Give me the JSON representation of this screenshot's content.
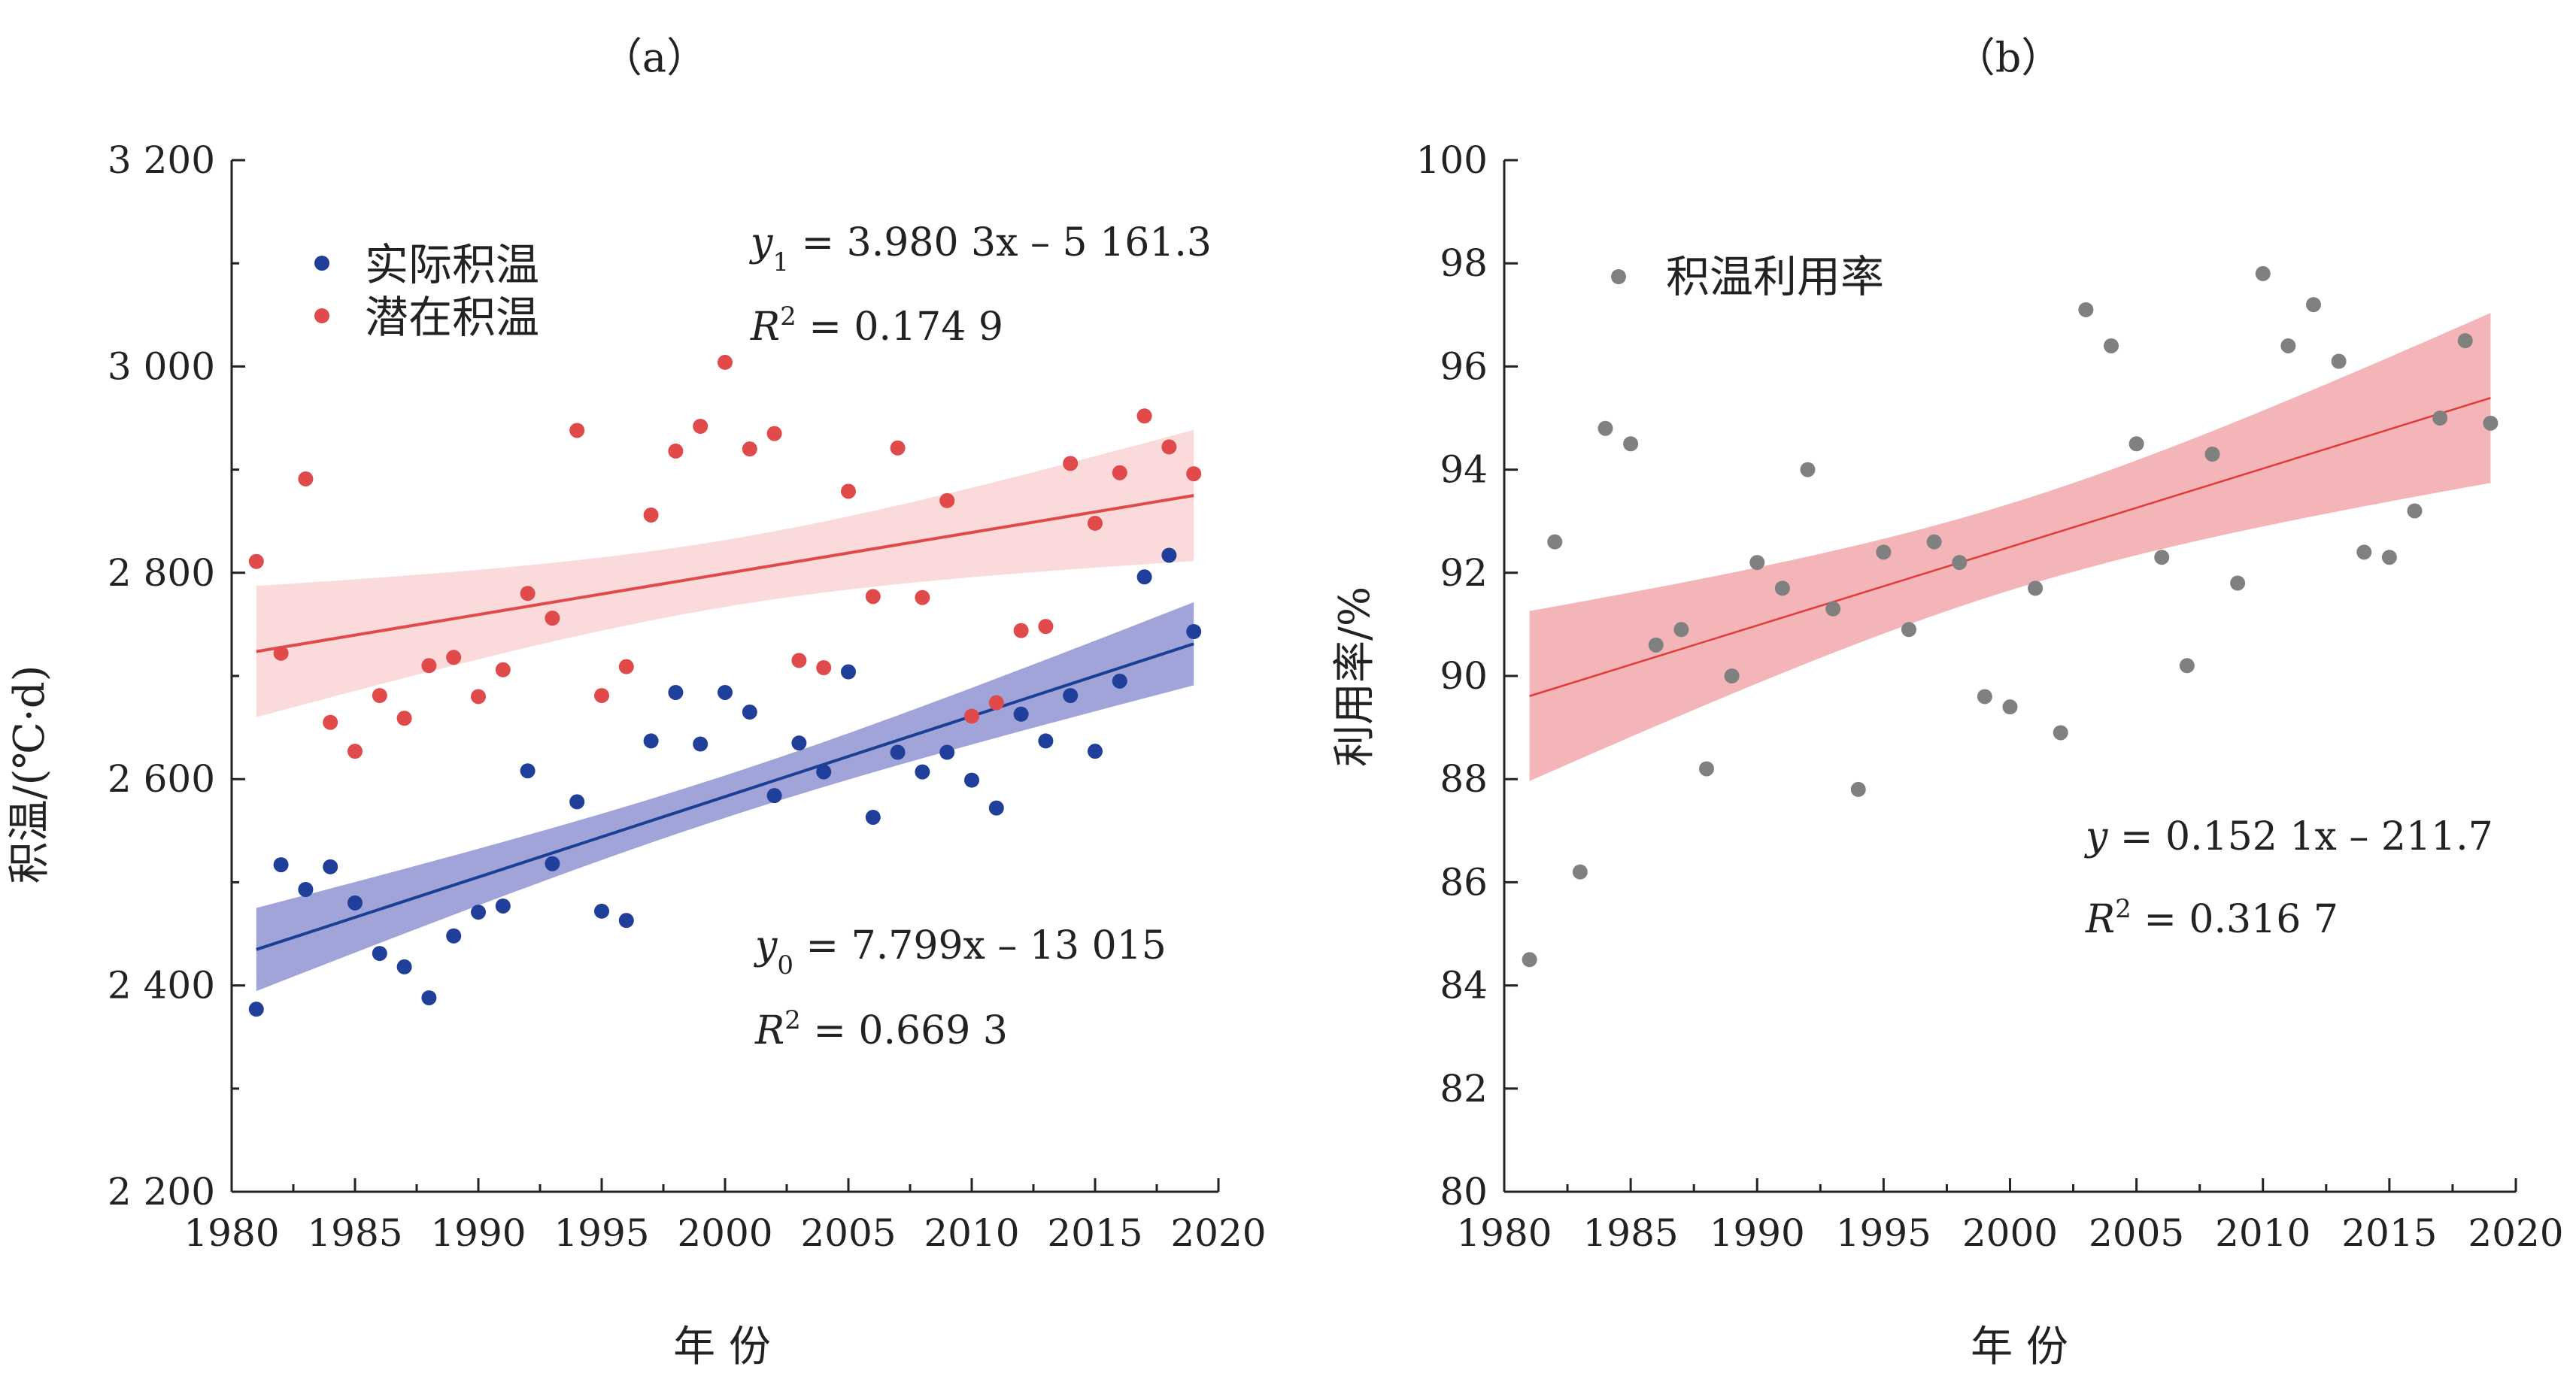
{
  "chart_data": [
    {
      "type": "scatter",
      "panel_label": "（a）",
      "xlabel": "年 份",
      "ylabel": "积温/(℃·d)",
      "xlim": [
        1980,
        2020
      ],
      "ylim": [
        2200,
        3200
      ],
      "xticks": [
        "1980",
        "1985",
        "1990",
        "1995",
        "2000",
        "2005",
        "2010",
        "2015",
        "2020"
      ],
      "yticks": [
        "2 200",
        "2 400",
        "2 600",
        "2 800",
        "3 000",
        "3 200"
      ],
      "legend_position": "top-left",
      "grid": false,
      "series": [
        {
          "name": "实际积温",
          "color": "#1f3f9a",
          "x": [
            1981,
            1982,
            1983,
            1984,
            1985,
            1986,
            1987,
            1988,
            1989,
            1990,
            1991,
            1992,
            1993,
            1994,
            1995,
            1996,
            1997,
            1998,
            1999,
            2000,
            2001,
            2002,
            2003,
            2004,
            2005,
            2006,
            2007,
            2008,
            2009,
            2010,
            2011,
            2012,
            2013,
            2014,
            2015,
            2016,
            2017,
            2018,
            2019
          ],
          "y": [
            2377,
            2517,
            2493,
            2515,
            2480,
            2431,
            2418,
            2388,
            2448,
            2471,
            2477,
            2608,
            2518,
            2578,
            2472,
            2463,
            2637,
            2684,
            2634,
            2684,
            2665,
            2584,
            2635,
            2607,
            2704,
            2563,
            2626,
            2607,
            2626,
            2599,
            2572,
            2663,
            2637,
            2681,
            2627,
            2695,
            2796,
            2817,
            2743
          ],
          "fit": {
            "slope": 7.799,
            "intercept": -13015,
            "band_color": "#8f94d2",
            "line_color": "#1a3f95"
          },
          "equation": {
            "lhs": "y",
            "sub": "0",
            "rhs": " = 7.799x – 13 015"
          },
          "r2": {
            "lhs": "R",
            "sup": "2",
            "rhs": " = 0.669 3"
          }
        },
        {
          "name": "潜在积温",
          "color": "#e04a4a",
          "x": [
            1981,
            1982,
            1983,
            1984,
            1985,
            1986,
            1987,
            1988,
            1989,
            1990,
            1991,
            1992,
            1993,
            1994,
            1995,
            1996,
            1997,
            1998,
            1999,
            2000,
            2001,
            2002,
            2003,
            2004,
            2005,
            2006,
            2007,
            2008,
            2009,
            2010,
            2011,
            2012,
            2013,
            2014,
            2015,
            2016,
            2017,
            2018,
            2019
          ],
          "y": [
            2811,
            2722,
            2891,
            2655,
            2627,
            2681,
            2659,
            2710,
            2718,
            2680,
            2706,
            2780,
            2756,
            2938,
            2681,
            2709,
            2856,
            2918,
            2942,
            3004,
            2920,
            2935,
            2715,
            2708,
            2879,
            2777,
            2921,
            2776,
            2870,
            2661,
            2674,
            2744,
            2748,
            2906,
            2848,
            2897,
            2952,
            2922,
            2896
          ],
          "fit": {
            "slope": 3.9803,
            "intercept": -5161.3,
            "band_color": "#f9d4d4",
            "line_color": "#e04a4a"
          },
          "equation": {
            "lhs": "y",
            "sub": "1",
            "rhs": " = 3.980 3x – 5 161.3"
          },
          "r2": {
            "lhs": "R",
            "sup": "2",
            "rhs": " = 0.174 9"
          }
        }
      ]
    },
    {
      "type": "scatter",
      "panel_label": "（b）",
      "xlabel": "年 份",
      "ylabel": "利用率/%",
      "xlim": [
        1980,
        2020
      ],
      "ylim": [
        80,
        100
      ],
      "xticks": [
        "1980",
        "1985",
        "1990",
        "1995",
        "2000",
        "2005",
        "2010",
        "2015",
        "2020"
      ],
      "yticks": [
        "80",
        "82",
        "84",
        "86",
        "88",
        "90",
        "92",
        "94",
        "96",
        "98",
        "100"
      ],
      "legend_position": "top-left",
      "grid": false,
      "series": [
        {
          "name": "积温利用率",
          "color": "#808080",
          "x": [
            1981,
            1982,
            1983,
            1984,
            1985,
            1986,
            1987,
            1988,
            1989,
            1990,
            1991,
            1992,
            1993,
            1994,
            1995,
            1996,
            1997,
            1998,
            1999,
            2000,
            2001,
            2002,
            2003,
            2004,
            2005,
            2006,
            2007,
            2008,
            2009,
            2010,
            2011,
            2012,
            2013,
            2014,
            2015,
            2016,
            2017,
            2018,
            2019
          ],
          "y": [
            84.5,
            92.6,
            86.2,
            94.8,
            94.5,
            90.6,
            90.9,
            88.2,
            90.0,
            92.2,
            91.7,
            94.0,
            91.3,
            87.8,
            92.4,
            90.9,
            92.6,
            92.2,
            89.6,
            89.4,
            91.7,
            88.9,
            97.1,
            96.4,
            94.5,
            92.3,
            90.2,
            94.3,
            91.8,
            97.8,
            96.4,
            97.2,
            96.1,
            92.4,
            92.3,
            93.2,
            95.0,
            96.5,
            94.9
          ],
          "fit": {
            "slope": 0.1521,
            "intercept": -211.7,
            "band_color": "#f2a8ac",
            "line_color": "#e03a3a"
          },
          "equation": {
            "lhs": "y",
            "sub": "",
            "rhs": " = 0.152 1x – 211.7"
          },
          "r2": {
            "lhs": "R",
            "sup": "2",
            "rhs": " = 0.316 7"
          }
        }
      ]
    }
  ]
}
